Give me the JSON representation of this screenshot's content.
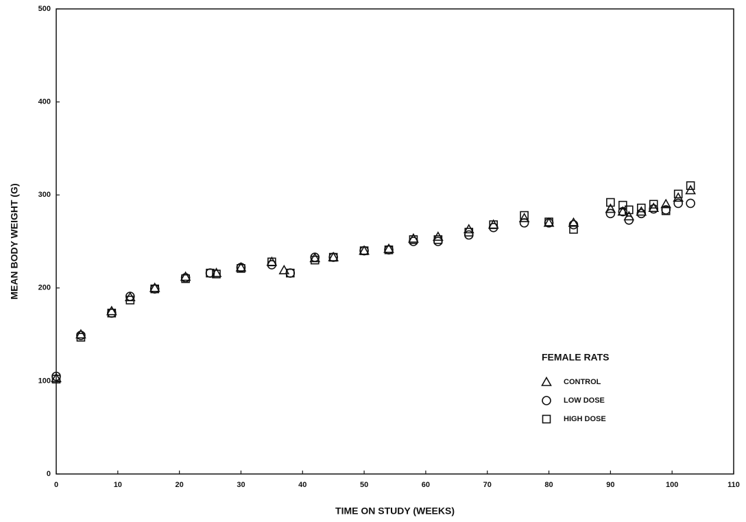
{
  "chart_data": {
    "type": "scatter",
    "xlabel": "TIME ON STUDY (WEEKS)",
    "ylabel": "MEAN BODY WEIGHT (G)",
    "legend_title": "FEMALE RATS",
    "legend_position": "lower right",
    "xlim": [
      0,
      110
    ],
    "xticks": [
      0,
      10,
      20,
      30,
      40,
      50,
      60,
      70,
      80,
      90,
      100,
      110
    ],
    "ylim": [
      0,
      500
    ],
    "yticks": [
      0,
      100,
      200,
      300,
      400,
      500
    ],
    "series": [
      {
        "name": "CONTROL",
        "marker": "triangle",
        "color": "#111111",
        "x": [
          0,
          4,
          9,
          12,
          16,
          21,
          26,
          30,
          35,
          37,
          42,
          45,
          50,
          54,
          58,
          62,
          67,
          71,
          76,
          80,
          84,
          90,
          92,
          93,
          95,
          97,
          99,
          101,
          103
        ],
        "values": [
          103,
          150,
          175,
          190,
          200,
          212,
          216,
          222,
          228,
          219,
          232,
          233,
          240,
          242,
          253,
          255,
          263,
          268,
          275,
          270,
          270,
          285,
          282,
          277,
          282,
          286,
          290,
          297,
          305
        ]
      },
      {
        "name": "LOW DOSE",
        "marker": "circle",
        "color": "#111111",
        "x": [
          0,
          4,
          9,
          12,
          16,
          21,
          25,
          30,
          35,
          38,
          42,
          45,
          50,
          54,
          58,
          62,
          67,
          71,
          76,
          80,
          84,
          90,
          92,
          93,
          95,
          97,
          99,
          101,
          103
        ],
        "values": [
          105,
          149,
          173,
          191,
          199,
          211,
          216,
          222,
          225,
          216,
          233,
          233,
          240,
          241,
          250,
          250,
          257,
          265,
          270,
          270,
          268,
          280,
          282,
          273,
          280,
          285,
          284,
          291,
          291
        ]
      },
      {
        "name": "HIGH DOSE",
        "marker": "square",
        "color": "#111111",
        "x": [
          0,
          4,
          9,
          12,
          16,
          21,
          25,
          26,
          30,
          35,
          38,
          42,
          45,
          50,
          54,
          58,
          62,
          67,
          71,
          76,
          80,
          84,
          90,
          92,
          93,
          95,
          97,
          99,
          101,
          103
        ],
        "values": [
          102,
          147,
          173,
          187,
          199,
          210,
          216,
          215,
          221,
          228,
          216,
          230,
          233,
          240,
          241,
          252,
          252,
          260,
          268,
          278,
          271,
          263,
          292,
          289,
          284,
          286,
          290,
          283,
          301,
          310
        ]
      }
    ]
  }
}
